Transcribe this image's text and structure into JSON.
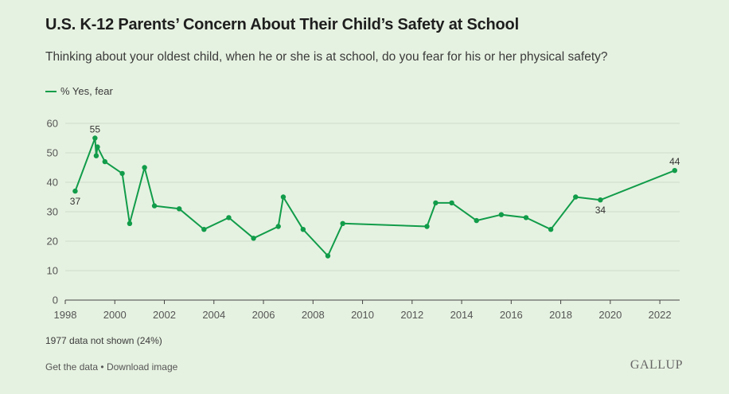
{
  "chart_data": {
    "type": "line",
    "title": "U.S. K-12 Parents’ Concern About Their Child’s Safety at School",
    "subtitle": "Thinking about your oldest child, when he or she is at school, do you fear for his or her physical safety?",
    "xlim": [
      1998,
      2022.8
    ],
    "ylim": [
      0,
      60
    ],
    "x_ticks": [
      1998,
      2000,
      2002,
      2004,
      2006,
      2008,
      2010,
      2012,
      2014,
      2016,
      2018,
      2020,
      2022
    ],
    "y_ticks": [
      0,
      10,
      20,
      30,
      40,
      50,
      60
    ],
    "grid": "horizontal",
    "legend_placement": "top-left",
    "series": [
      {
        "name": "% Yes, fear",
        "color": "#119c4a",
        "points": [
          {
            "x": 1998.4,
            "y": 37,
            "label": "37"
          },
          {
            "x": 1999.2,
            "y": 55,
            "label": "55"
          },
          {
            "x": 1999.25,
            "y": 49
          },
          {
            "x": 1999.3,
            "y": 52
          },
          {
            "x": 1999.6,
            "y": 47
          },
          {
            "x": 2000.3,
            "y": 43
          },
          {
            "x": 2000.6,
            "y": 26
          },
          {
            "x": 2001.2,
            "y": 45
          },
          {
            "x": 2001.6,
            "y": 32
          },
          {
            "x": 2002.6,
            "y": 31
          },
          {
            "x": 2003.6,
            "y": 24
          },
          {
            "x": 2004.6,
            "y": 28
          },
          {
            "x": 2005.6,
            "y": 21
          },
          {
            "x": 2006.6,
            "y": 25
          },
          {
            "x": 2006.8,
            "y": 35
          },
          {
            "x": 2007.6,
            "y": 24
          },
          {
            "x": 2008.6,
            "y": 15
          },
          {
            "x": 2009.2,
            "y": 26
          },
          {
            "x": 2012.6,
            "y": 25
          },
          {
            "x": 2012.95,
            "y": 33
          },
          {
            "x": 2013.6,
            "y": 33
          },
          {
            "x": 2014.6,
            "y": 27
          },
          {
            "x": 2015.6,
            "y": 29
          },
          {
            "x": 2016.6,
            "y": 28
          },
          {
            "x": 2017.6,
            "y": 24
          },
          {
            "x": 2018.6,
            "y": 35
          },
          {
            "x": 2019.6,
            "y": 34,
            "label": "34"
          },
          {
            "x": 2022.6,
            "y": 44,
            "label": "44"
          }
        ]
      }
    ],
    "note": "1977 data not shown (24%)"
  },
  "legend_label": "% Yes, fear",
  "footer": {
    "get_data": "Get the data",
    "separator": "•",
    "download": "Download image"
  },
  "brand": "GALLUP"
}
